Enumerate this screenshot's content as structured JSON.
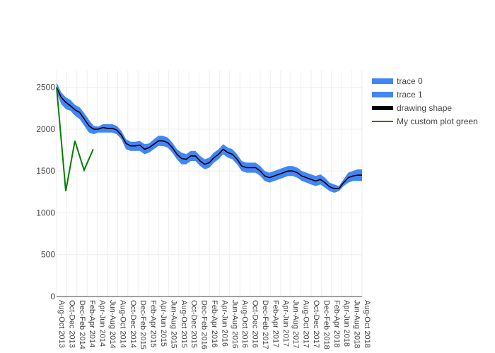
{
  "chart_data": {
    "type": "area",
    "ylim": [
      0,
      2700
    ],
    "yticks": [
      0,
      500,
      1000,
      1500,
      2000,
      2500
    ],
    "x_labels": [
      "Aug-Oct 2013",
      "Oct-Dec 2013",
      "Dec-Feb 2014",
      "Feb-Apr 2014",
      "Apr-Jun 2014",
      "Jun-Aug 2014",
      "Aug-Oct 2014",
      "Oct-Dec 2014",
      "Dec-Feb 2015",
      "Feb-Apr 2015",
      "Apr-Jun 2015",
      "Jun-Aug 2015",
      "Aug-Oct 2015",
      "Oct-Dec 2015",
      "Dec-Feb 2016",
      "Feb-Apr 2016",
      "Apr-Jun 2016",
      "Jun-Aug 2016",
      "Aug-Oct 2016",
      "Oct-Dec 2016",
      "Dec-Feb 2017",
      "Feb-Apr 2017",
      "Apr-Jun 2017",
      "Jun-Aug 2017",
      "Aug-Oct 2017",
      "Oct-Dec 2017",
      "Dec-Feb 2018",
      "Feb-Apr 2018",
      "Apr-Jun 2018",
      "Jun-Aug 2018",
      "Aug-Oct 2018"
    ],
    "series": [
      {
        "name": "trace 0",
        "color": "#4285F4",
        "values": [
          2560,
          2440,
          2380,
          2350,
          2290,
          2260,
          2190,
          2110,
          2040,
          2030,
          2060,
          2060,
          2060,
          2040,
          1980,
          1880,
          1850,
          1850,
          1860,
          1820,
          1830,
          1880,
          1920,
          1920,
          1900,
          1840,
          1760,
          1720,
          1700,
          1740,
          1740,
          1680,
          1640,
          1660,
          1720,
          1760,
          1820,
          1780,
          1760,
          1700,
          1620,
          1600,
          1600,
          1600,
          1560,
          1500,
          1480,
          1500,
          1520,
          1540,
          1560,
          1560,
          1540,
          1500,
          1480,
          1460,
          1440,
          1460,
          1420,
          1360,
          1340,
          1320,
          1400,
          1480,
          1500,
          1520,
          1520
        ],
        "lower": [
          2440,
          2300,
          2240,
          2220,
          2160,
          2120,
          2040,
          1960,
          1940,
          1960,
          1960,
          1960,
          1960,
          1940,
          1880,
          1760,
          1740,
          1740,
          1740,
          1700,
          1720,
          1760,
          1800,
          1800,
          1780,
          1720,
          1640,
          1580,
          1580,
          1620,
          1620,
          1560,
          1520,
          1540,
          1600,
          1640,
          1700,
          1660,
          1640,
          1580,
          1500,
          1480,
          1480,
          1480,
          1440,
          1380,
          1360,
          1380,
          1400,
          1420,
          1440,
          1440,
          1420,
          1380,
          1360,
          1340,
          1320,
          1340,
          1300,
          1260,
          1240,
          1260,
          1320,
          1360,
          1380,
          1380,
          1380
        ]
      },
      {
        "name": "trace 1",
        "color": "#4285F4",
        "values": []
      },
      {
        "name": "drawing shape",
        "color": "#000000",
        "values": [
          2500,
          2380,
          2320,
          2280,
          2230,
          2200,
          2120,
          2040,
          2000,
          2000,
          2020,
          2010,
          2010,
          1990,
          1930,
          1830,
          1800,
          1800,
          1810,
          1760,
          1780,
          1820,
          1860,
          1860,
          1840,
          1780,
          1700,
          1650,
          1640,
          1680,
          1680,
          1620,
          1580,
          1600,
          1660,
          1700,
          1760,
          1720,
          1700,
          1640,
          1560,
          1540,
          1540,
          1540,
          1500,
          1440,
          1420,
          1440,
          1460,
          1480,
          1500,
          1500,
          1480,
          1440,
          1420,
          1400,
          1380,
          1400,
          1360,
          1310,
          1290,
          1290,
          1360,
          1420,
          1440,
          1450,
          1450
        ]
      },
      {
        "name": "My custom plot green",
        "color": "#008000",
        "x_index": [
          0,
          2,
          4,
          6,
          8
        ],
        "values": [
          2500,
          1260,
          1860,
          1510,
          1760
        ]
      }
    ],
    "legend_position": "right",
    "grid": true
  }
}
